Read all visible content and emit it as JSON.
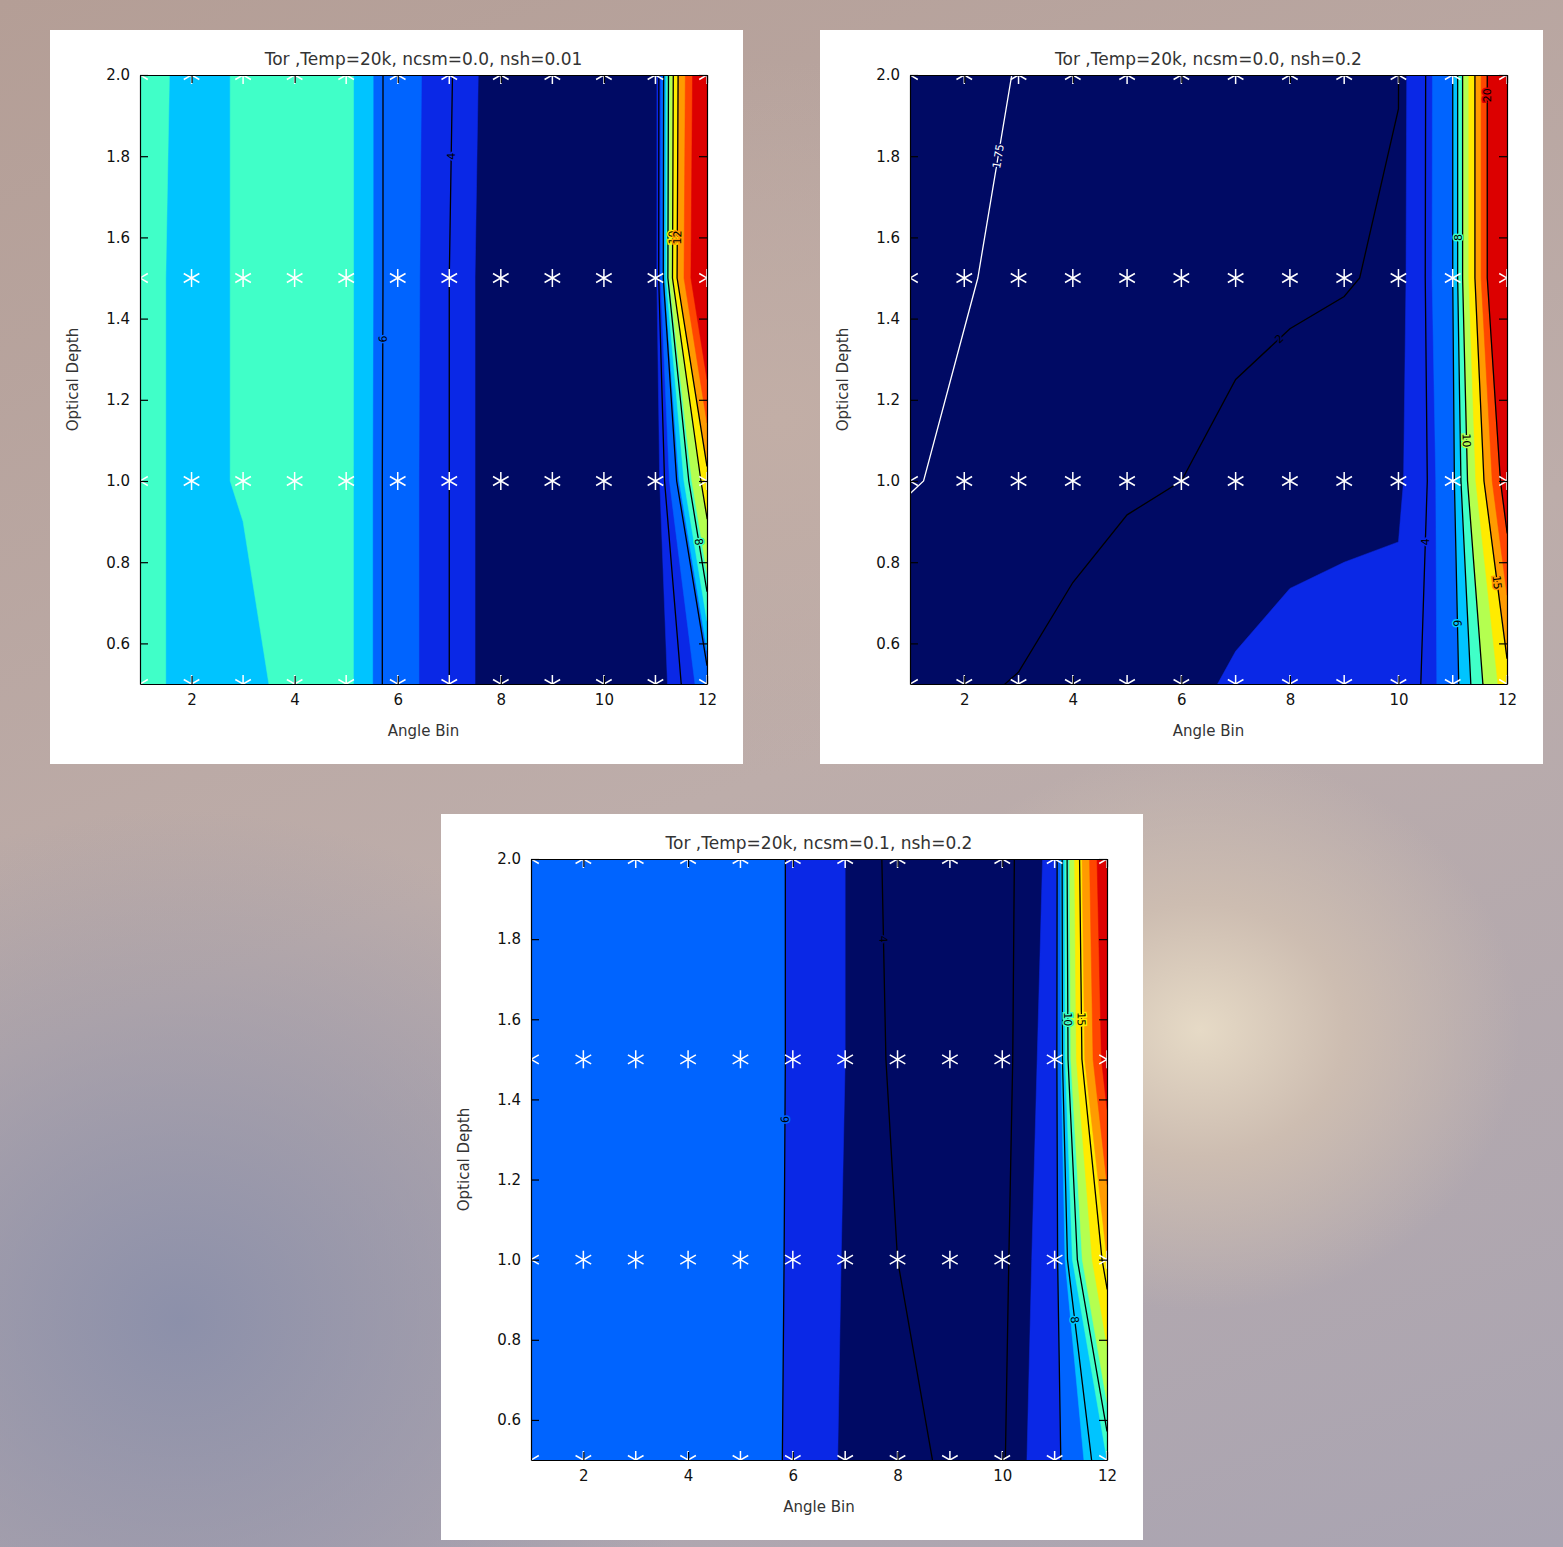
{
  "chart_data": [
    {
      "type": "contour",
      "title": "Tor ,Temp=20k, ncsm=0.0, nsh=0.01",
      "x_label": "Angle Bin",
      "y_label": "Optical Depth",
      "x": [
        1,
        2,
        3,
        4,
        5,
        6,
        7,
        8,
        9,
        10,
        11,
        12
      ],
      "y": [
        0.5,
        1.0,
        1.5,
        2.0
      ],
      "z": [
        [
          7.5,
          6.9,
          6.8,
          7.6,
          7.5,
          5.36,
          4.0,
          2.4,
          2.5,
          2.3,
          2.5,
          5.5
        ],
        [
          7.5,
          6.9,
          7.3,
          7.6,
          7.5,
          5.36,
          4.0,
          2.4,
          2.5,
          2.3,
          2.5,
          11
        ],
        [
          7.5,
          6.9,
          7.3,
          7.6,
          7.5,
          5.4,
          4.0,
          2.4,
          2.5,
          2.3,
          2.6,
          25
        ],
        [
          7.6,
          6.9,
          7.3,
          7.7,
          7.5,
          5.4,
          4.1,
          2.5,
          2.5,
          2.3,
          2.6,
          24
        ]
      ],
      "levels": [
        0,
        3.2,
        4.8,
        6.4,
        7.2,
        8.5,
        10,
        12,
        15,
        18
      ],
      "colors": [
        "#000a64",
        "#0a28e6",
        "#0064ff",
        "#00c4ff",
        "#40ffc8",
        "#b4ff50",
        "#ffeb00",
        "#ff9b00",
        "#ff4600",
        "#dc0000"
      ],
      "contour_lines": [
        {
          "value": 4,
          "color": "#000000"
        },
        {
          "value": 6,
          "color": "#000000"
        },
        {
          "value": 8,
          "color": "#000000"
        },
        {
          "value": 10,
          "color": "#000000"
        },
        {
          "value": 12,
          "color": "#000000"
        }
      ],
      "marker": "asterisk",
      "xlim": [
        1,
        12
      ],
      "ylim": [
        0.5,
        2.0
      ],
      "xticks": [
        2,
        4,
        6,
        8,
        10,
        12
      ],
      "yticks": [
        0.6,
        0.8,
        {
          "value": 1.0,
          "label": "1.0"
        },
        1.2,
        1.4,
        1.6,
        1.8,
        {
          "value": 2.0,
          "label": "2.0"
        }
      ]
    },
    {
      "type": "contour",
      "title": "Tor ,Temp=20k, ncsm=0.0, nsh=0.2",
      "x_label": "Angle Bin",
      "y_label": "Optical Depth",
      "x": [
        1,
        2,
        3,
        4,
        5,
        6,
        7,
        8,
        9,
        10,
        11,
        12
      ],
      "y": [
        0.5,
        1.0,
        1.5,
        2.0
      ],
      "z": [
        [
          1.9,
          1.97,
          2.01,
          2.1,
          2.2,
          2.4,
          2.7,
          3.0,
          3.2,
          3.3,
          5.0,
          14
        ],
        [
          1.74,
          1.78,
          1.84,
          1.9,
          1.96,
          2.0,
          2.08,
          2.15,
          2.2,
          2.3,
          5.5,
          22
        ],
        [
          1.68,
          1.74,
          1.78,
          1.82,
          1.86,
          1.89,
          1.92,
          1.95,
          1.98,
          2.05,
          6,
          28
        ],
        [
          1.6,
          1.68,
          1.76,
          1.8,
          1.84,
          1.88,
          1.91,
          1.94,
          1.97,
          1.99,
          6,
          28
        ]
      ],
      "levels": [
        0,
        2.6,
        4.5,
        6,
        8,
        10,
        12.5,
        15,
        17.5,
        20
      ],
      "colors": [
        "#000a64",
        "#0a28e6",
        "#0064ff",
        "#00c4ff",
        "#40ffc8",
        "#b4ff50",
        "#ffeb00",
        "#ff9b00",
        "#ff4600",
        "#dc0000"
      ],
      "contour_lines": [
        {
          "value": 1.75,
          "color": "#ffffff"
        },
        {
          "value": 2,
          "color": "#000000"
        },
        {
          "value": 4,
          "color": "#000000"
        },
        {
          "value": 6,
          "color": "#000000"
        },
        {
          "value": 8,
          "color": "#000000"
        },
        {
          "value": 10,
          "color": "#000000"
        },
        {
          "value": 15,
          "color": "#000000"
        },
        {
          "value": 20,
          "color": "#000000"
        }
      ],
      "marker": "asterisk",
      "xlim": [
        1,
        12
      ],
      "ylim": [
        0.5,
        2.0
      ],
      "xticks": [
        2,
        4,
        6,
        8,
        10,
        12
      ],
      "yticks": [
        0.6,
        0.8,
        {
          "value": 1.0,
          "label": "1.0"
        },
        1.2,
        1.4,
        1.6,
        1.8,
        {
          "value": 2.0,
          "label": "2.0"
        }
      ]
    },
    {
      "type": "contour",
      "title": "Tor ,Temp=20k, ncsm=0.1, nsh=0.2",
      "x_label": "Angle Bin",
      "y_label": "Optical Depth",
      "x": [
        1,
        2,
        3,
        4,
        5,
        6,
        7,
        8,
        9,
        10,
        11,
        12
      ],
      "y": [
        0.5,
        1.0,
        1.5,
        2.0
      ],
      "z": [
        [
          6.4,
          6.4,
          6.4,
          6.4,
          6.4,
          5.9,
          4.5,
          4.1,
          3.95,
          3.9,
          5.6,
          9
        ],
        [
          6.5,
          6.5,
          6.5,
          6.5,
          6.5,
          5.9,
          4.6,
          4.0,
          3.8,
          3.8,
          5.4,
          16
        ],
        [
          6.6,
          6.6,
          6.6,
          6.6,
          6.6,
          5.9,
          4.7,
          3.8,
          3.6,
          3.7,
          5.2,
          24
        ],
        [
          6.6,
          6.6,
          6.6,
          6.6,
          6.6,
          5.9,
          4.7,
          3.7,
          3.6,
          3.7,
          5.0,
          26
        ]
      ],
      "levels": [
        0,
        4.7,
        6.0,
        7.5,
        9,
        11,
        13,
        16,
        19,
        22
      ],
      "colors": [
        "#000a64",
        "#0a28e6",
        "#0064ff",
        "#00c4ff",
        "#40ffc8",
        "#b4ff50",
        "#ffeb00",
        "#ff9b00",
        "#ff4600",
        "#dc0000"
      ],
      "contour_lines": [
        {
          "value": 4,
          "color": "#000000"
        },
        {
          "value": 6,
          "color": "#000000"
        },
        {
          "value": 8,
          "color": "#000000"
        },
        {
          "value": 10,
          "color": "#000000"
        },
        {
          "value": 15,
          "color": "#000000"
        }
      ],
      "marker": "asterisk",
      "xlim": [
        1,
        12
      ],
      "ylim": [
        0.5,
        2.0
      ],
      "xticks": [
        2,
        4,
        6,
        8,
        10,
        12
      ],
      "yticks": [
        0.6,
        0.8,
        {
          "value": 1.0,
          "label": "1.0"
        },
        1.2,
        1.4,
        1.6,
        1.8,
        {
          "value": 2.0,
          "label": "2.0"
        }
      ]
    }
  ]
}
